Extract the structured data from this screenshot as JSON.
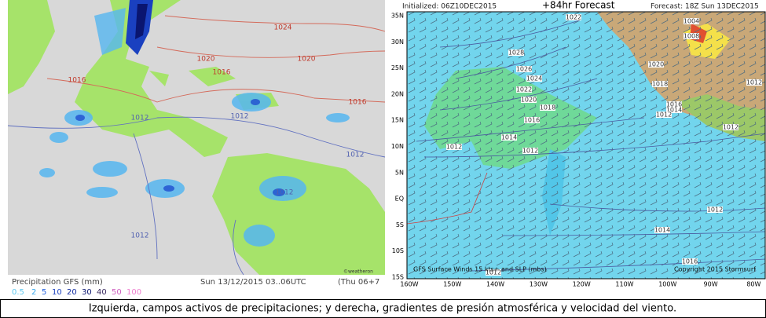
{
  "left_map": {
    "isobar_labels": [
      "1024",
      "1020",
      "1020",
      "1016",
      "1016",
      "1016",
      "1012",
      "1012",
      "1012",
      "1012",
      "1012"
    ],
    "legend_title": "Precipitation GFS (mm)",
    "valid_time": "Sun 13/12/2015 03..06UTC",
    "run_info": "(Thu 06+7",
    "credit": "©weatheron",
    "legend_values": [
      "0.5",
      "2",
      "5",
      "10",
      "20",
      "30",
      "40",
      "50",
      "100"
    ]
  },
  "right_map": {
    "initialized": "Initialized: 06Z10DEC2015",
    "forecast_hour": "+84hr Forecast",
    "forecast_time": "Forecast: 18Z Sun 13DEC2015",
    "lat_labels": [
      "35N",
      "30N",
      "25N",
      "20N",
      "15N",
      "10N",
      "5N",
      "EQ",
      "5S",
      "10S",
      "15S"
    ],
    "lon_labels": [
      "160W",
      "150W",
      "140W",
      "130W",
      "120W",
      "110W",
      "100W",
      "90W",
      "80W"
    ],
    "isobar_labels": [
      "1022",
      "1028",
      "1026",
      "1024",
      "1022",
      "1020",
      "1018",
      "1016",
      "1014",
      "1012",
      "1012",
      "1018",
      "1020",
      "1016",
      "1014",
      "1012",
      "1012",
      "1012",
      "1014",
      "1016",
      "1012",
      "1004",
      "1008",
      "1012"
    ],
    "footer": "GFS Surface Winds 15 kts+ and SLP (mbs)",
    "copyright": "Copyright 2015 Stormsurf"
  },
  "caption": "Izquierda, campos activos de precipitaciones; y derecha, gradientes de presión atmosférica y velocidad del viento."
}
